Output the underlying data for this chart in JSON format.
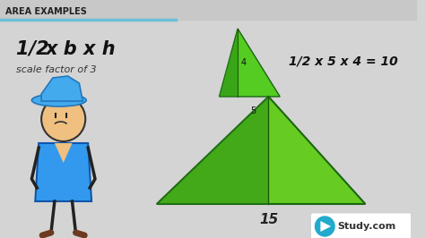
{
  "bg_color": "#d4d4d4",
  "header_text": "AREA EXAMPLES",
  "header_bar_color": "#6bbfd8",
  "formula_text": "1/2 x b x h",
  "scale_text": "scale factor of 3",
  "small_tri": {
    "base_label": "5",
    "height_label": "4",
    "formula": "1/2 x 5 x 4 = 10"
  },
  "large_tri": {
    "base_label": "15"
  },
  "studycom_text": "Study.com"
}
